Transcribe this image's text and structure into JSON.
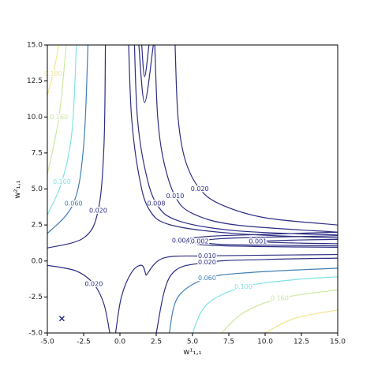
{
  "chart_data": {
    "type": "contour",
    "xlabel": "w¹₁,₁",
    "ylabel": "w²₁,₁",
    "xlim": [
      -5,
      15
    ],
    "ylim": [
      -5,
      15
    ],
    "xticks": [
      {
        "value": -5,
        "label": "-5.0"
      },
      {
        "value": -2.5,
        "label": "-2.5"
      },
      {
        "value": 0,
        "label": "0.0"
      },
      {
        "value": 2.5,
        "label": "2.5"
      },
      {
        "value": 5,
        "label": "5.0"
      },
      {
        "value": 7.5,
        "label": "7.5"
      },
      {
        "value": 10,
        "label": "10.0"
      },
      {
        "value": 12.5,
        "label": "12.5"
      },
      {
        "value": 15,
        "label": "15.0"
      }
    ],
    "yticks": [
      {
        "value": -5,
        "label": "-5.0"
      },
      {
        "value": -2.5,
        "label": "-2.5"
      },
      {
        "value": 0,
        "label": "0.0"
      },
      {
        "value": 2.5,
        "label": "2.5"
      },
      {
        "value": 5,
        "label": "5.0"
      },
      {
        "value": 7.5,
        "label": "7.5"
      },
      {
        "value": 10,
        "label": "10.0"
      },
      {
        "value": 12.5,
        "label": "12.5"
      },
      {
        "value": 15,
        "label": "15.0"
      }
    ],
    "series": [
      {
        "name": "0.020",
        "color": "#2c2d83",
        "x": [
          3.8,
          4.0,
          4.5,
          5.5,
          7,
          10,
          15
        ],
        "y": [
          15,
          10,
          7,
          5,
          3.9,
          3.0,
          2.5
        ]
      },
      {
        "name": "0.010",
        "color": "#2c2d83",
        "x": [
          2.4,
          2.6,
          3,
          3.8,
          5,
          8,
          15
        ],
        "y": [
          15,
          10,
          7,
          4.5,
          3.3,
          2.5,
          2.0
        ]
      },
      {
        "name": "0.008",
        "color": "#2c2d83",
        "x": [
          1.0,
          1.2,
          1.7,
          2.5,
          4,
          8,
          15
        ],
        "y": [
          15,
          10,
          6.5,
          4,
          2.8,
          2.1,
          1.8
        ]
      },
      {
        "color": "#2c2d83",
        "x": [
          0.6,
          0.8,
          1.3,
          2,
          3.5,
          8,
          15
        ],
        "y": [
          15,
          10,
          6,
          3.6,
          2.5,
          1.9,
          1.6
        ]
      },
      {
        "color": "#2c2d83",
        "x": [
          1.3,
          1.7,
          2.3
        ],
        "y": [
          15,
          11,
          15
        ]
      },
      {
        "color": "#2c2d83",
        "x": [
          1.5,
          1.7,
          2.0
        ],
        "y": [
          15,
          12.8,
          15
        ]
      },
      {
        "name": "0.004",
        "color": "#2c2d83",
        "x": [
          15,
          10,
          6,
          4.2,
          6,
          10,
          15
        ],
        "y": [
          2.0,
          1.85,
          1.7,
          1.4,
          1.1,
          1.0,
          0.95
        ]
      },
      {
        "name": "0.002",
        "color": "#2c2d83",
        "x": [
          15,
          10,
          7,
          5.5,
          7,
          10,
          15
        ],
        "y": [
          1.75,
          1.65,
          1.55,
          1.35,
          1.15,
          1.1,
          1.05
        ]
      },
      {
        "name": "0.001",
        "color": "#2c2d83",
        "x": [
          15,
          12,
          9.5,
          12,
          15
        ],
        "y": [
          1.5,
          1.45,
          1.35,
          1.25,
          1.2
        ]
      },
      {
        "name": "0.010",
        "color": "#2c2d83",
        "x": [
          1.8,
          3,
          6,
          10,
          15
        ],
        "y": [
          -1,
          0.2,
          0.35,
          0.4,
          0.45
        ]
      },
      {
        "name": "0.020",
        "color": "#2c2d83",
        "x": [
          2.5,
          3.5,
          6,
          10,
          15
        ],
        "y": [
          -5,
          -1,
          -0.1,
          0.1,
          0.2
        ]
      },
      {
        "name": "0.060",
        "color": "#3f7fb5",
        "x": [
          3.4,
          4,
          6,
          9,
          15
        ],
        "y": [
          -5,
          -2.5,
          -1.2,
          -0.8,
          -0.5
        ]
      },
      {
        "name": "0.100",
        "color": "#7ee3e6",
        "x": [
          5,
          6,
          8.5,
          12,
          15
        ],
        "y": [
          -5,
          -3,
          -1.8,
          -1.3,
          -1.1
        ]
      },
      {
        "name": "0.160",
        "color": "#cbe8a0",
        "x": [
          7,
          8.5,
          11,
          15
        ],
        "y": [
          -5,
          -3.6,
          -2.6,
          -2.0
        ]
      },
      {
        "color": "#f1e48f",
        "x": [
          10,
          12,
          15
        ],
        "y": [
          -5,
          -4,
          -3.4
        ]
      },
      {
        "name": "0.020",
        "color": "#2c2d83",
        "x": [
          -1,
          -1.1,
          -1.5,
          -2.5,
          -5
        ],
        "y": [
          15,
          8,
          3.5,
          1.6,
          0.9
        ]
      },
      {
        "name": "0.060",
        "color": "#3f7fb5",
        "x": [
          -2.2,
          -2.5,
          -3.2,
          -5
        ],
        "y": [
          15,
          8,
          4,
          1.9
        ]
      },
      {
        "name": "0.100",
        "color": "#7ee3e6",
        "x": [
          -3,
          -3.3,
          -4,
          -5
        ],
        "y": [
          15,
          9,
          5.5,
          3.2
        ]
      },
      {
        "name": "0.160",
        "color": "#cbe8a0",
        "x": [
          -3.7,
          -4.2,
          -5
        ],
        "y": [
          15,
          10,
          6
        ]
      },
      {
        "name": "0.180",
        "color": "#f1e48f",
        "x": [
          -4.2,
          -4.6,
          -5
        ],
        "y": [
          15,
          13,
          11.5
        ]
      },
      {
        "name": "0.020",
        "color": "#2c2d83",
        "x": [
          -5,
          -3,
          -1.8,
          -1.1,
          -0.7
        ],
        "y": [
          -0.3,
          -0.7,
          -1.6,
          -3,
          -5
        ]
      },
      {
        "color": "#2c2d83",
        "x": [
          -0.3,
          0.1,
          0.8,
          1.5,
          1.8
        ],
        "y": [
          -5,
          -2.5,
          -0.8,
          -0.3,
          -1
        ]
      }
    ],
    "marker": {
      "x": -4,
      "y": -4,
      "color": "#2c2d83"
    }
  }
}
